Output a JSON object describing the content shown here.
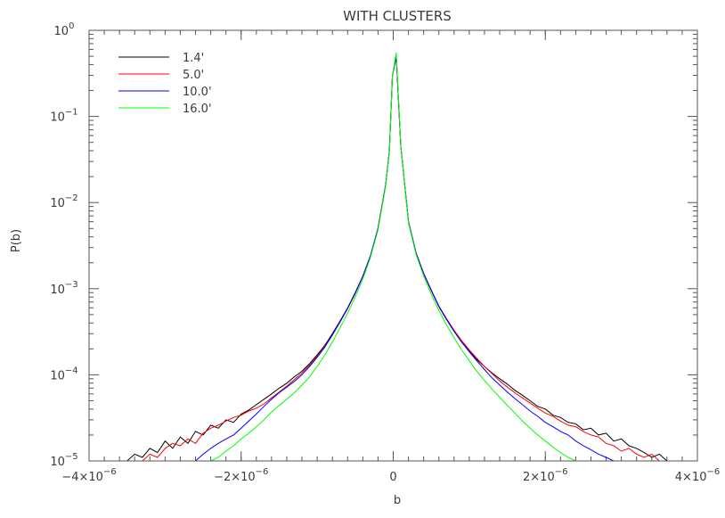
{
  "chart_data": {
    "type": "line",
    "title": "WITH CLUSTERS",
    "xlabel": "b",
    "ylabel": "P(b)",
    "xlim": [
      -4e-06,
      4e-06
    ],
    "ylim": [
      1e-05,
      1
    ],
    "yscale": "log",
    "grid": false,
    "legend_position": "top-left",
    "x_ticks": [
      {
        "value": -4e-06,
        "mant": "−4×10",
        "exp": "−6"
      },
      {
        "value": -2e-06,
        "mant": "−2×10",
        "exp": "−6"
      },
      {
        "value": 0,
        "mant": "0",
        "exp": ""
      },
      {
        "value": 2e-06,
        "mant": "2×10",
        "exp": "−6"
      },
      {
        "value": 4e-06,
        "mant": "4×10",
        "exp": "−6"
      }
    ],
    "y_ticks": [
      {
        "value": 1,
        "mant": "10",
        "exp": "0"
      },
      {
        "value": 0.1,
        "mant": "10",
        "exp": "−1"
      },
      {
        "value": 0.01,
        "mant": "10",
        "exp": "−2"
      },
      {
        "value": 0.001,
        "mant": "10",
        "exp": "−3"
      },
      {
        "value": 0.0001,
        "mant": "10",
        "exp": "−4"
      },
      {
        "value": 1e-05,
        "mant": "10",
        "exp": "−5"
      }
    ],
    "series": [
      {
        "name": "1.4'",
        "color": "#000000",
        "points": [
          [
            -3.5e-06,
            1e-05
          ],
          [
            -3.4e-06,
            1.2e-05
          ],
          [
            -3.3e-06,
            1.1e-05
          ],
          [
            -3.2e-06,
            1.4e-05
          ],
          [
            -3.1e-06,
            1.25e-05
          ],
          [
            -3e-06,
            1.7e-05
          ],
          [
            -2.9e-06,
            1.4e-05
          ],
          [
            -2.8e-06,
            1.9e-05
          ],
          [
            -2.7e-06,
            1.6e-05
          ],
          [
            -2.6e-06,
            2.2e-05
          ],
          [
            -2.5e-06,
            2e-05
          ],
          [
            -2.4e-06,
            2.6e-05
          ],
          [
            -2.3e-06,
            2.4e-05
          ],
          [
            -2.2e-06,
            3e-05
          ],
          [
            -2.1e-06,
            2.8e-05
          ],
          [
            -2e-06,
            3.5e-05
          ],
          [
            -1.9e-06,
            3.9e-05
          ],
          [
            -1.8e-06,
            4.5e-05
          ],
          [
            -1.7e-06,
            5.2e-05
          ],
          [
            -1.6e-06,
            6e-05
          ],
          [
            -1.5e-06,
            7e-05
          ],
          [
            -1.4e-06,
            8e-05
          ],
          [
            -1.3e-06,
            9.5e-05
          ],
          [
            -1.2e-06,
            0.00011
          ],
          [
            -1.1e-06,
            0.000135
          ],
          [
            -1e-06,
            0.00017
          ],
          [
            -9e-07,
            0.00022
          ],
          [
            -8e-07,
            0.0003
          ],
          [
            -7e-07,
            0.00042
          ],
          [
            -6e-07,
            0.0006
          ],
          [
            -5e-07,
            0.0009
          ],
          [
            -4e-07,
            0.0014
          ],
          [
            -3e-07,
            0.0024
          ],
          [
            -2e-07,
            0.005
          ],
          [
            -1e-07,
            0.016
          ],
          [
            -5e-08,
            0.04
          ],
          [
            -1e-08,
            0.3
          ],
          [
            4e-08,
            0.5
          ],
          [
            1e-07,
            0.045
          ],
          [
            2e-07,
            0.006
          ],
          [
            3e-07,
            0.0026
          ],
          [
            4e-07,
            0.0015
          ],
          [
            5e-07,
            0.00095
          ],
          [
            6e-07,
            0.00062
          ],
          [
            7e-07,
            0.00044
          ],
          [
            8e-07,
            0.00032
          ],
          [
            9e-07,
            0.00024
          ],
          [
            1e-06,
            0.00019
          ],
          [
            1.1e-06,
            0.00015
          ],
          [
            1.2e-06,
            0.000125
          ],
          [
            1.3e-06,
            0.000105
          ],
          [
            1.4e-06,
            9e-05
          ],
          [
            1.5e-06,
            7.8e-05
          ],
          [
            1.6e-06,
            6.6e-05
          ],
          [
            1.7e-06,
            5.8e-05
          ],
          [
            1.8e-06,
            5e-05
          ],
          [
            1.9e-06,
            4.3e-05
          ],
          [
            2e-06,
            4e-05
          ],
          [
            2.1e-06,
            3.4e-05
          ],
          [
            2.2e-06,
            3.2e-05
          ],
          [
            2.3e-06,
            2.8e-05
          ],
          [
            2.4e-06,
            2.7e-05
          ],
          [
            2.5e-06,
            2.3e-05
          ],
          [
            2.6e-06,
            2.4e-05
          ],
          [
            2.7e-06,
            2e-05
          ],
          [
            2.8e-06,
            2.1e-05
          ],
          [
            2.9e-06,
            1.7e-05
          ],
          [
            3e-06,
            1.8e-05
          ],
          [
            3.1e-06,
            1.5e-05
          ],
          [
            3.2e-06,
            1.4e-05
          ],
          [
            3.3e-06,
            1.25e-05
          ],
          [
            3.4e-06,
            1.1e-05
          ],
          [
            3.5e-06,
            1.2e-05
          ],
          [
            3.6e-06,
            1e-05
          ]
        ]
      },
      {
        "name": "5.0'",
        "color": "#ff0000",
        "points": [
          [
            -3.3e-06,
            1e-05
          ],
          [
            -3.2e-06,
            1.2e-05
          ],
          [
            -3.1e-06,
            1.1e-05
          ],
          [
            -3e-06,
            1.4e-05
          ],
          [
            -2.9e-06,
            1.6e-05
          ],
          [
            -2.8e-06,
            1.5e-05
          ],
          [
            -2.7e-06,
            1.8e-05
          ],
          [
            -2.6e-06,
            1.6e-05
          ],
          [
            -2.5e-06,
            2.1e-05
          ],
          [
            -2.4e-06,
            2.4e-05
          ],
          [
            -2.3e-06,
            2.6e-05
          ],
          [
            -2.2e-06,
            2.9e-05
          ],
          [
            -2.1e-06,
            3.2e-05
          ],
          [
            -2e-06,
            3.4e-05
          ],
          [
            -1.9e-06,
            3.8e-05
          ],
          [
            -1.8e-06,
            4.1e-05
          ],
          [
            -1.7e-06,
            4.6e-05
          ],
          [
            -1.6e-06,
            5.4e-05
          ],
          [
            -1.5e-06,
            6.3e-05
          ],
          [
            -1.4e-06,
            7.4e-05
          ],
          [
            -1.3e-06,
            8.8e-05
          ],
          [
            -1.2e-06,
            0.000105
          ],
          [
            -1.1e-06,
            0.00013
          ],
          [
            -1e-06,
            0.000165
          ],
          [
            -9e-07,
            0.000215
          ],
          [
            -8e-07,
            0.00029
          ],
          [
            -7e-07,
            0.00041
          ],
          [
            -6e-07,
            0.00059
          ],
          [
            -5e-07,
            0.00088
          ],
          [
            -4e-07,
            0.0014
          ],
          [
            -3e-07,
            0.0024
          ],
          [
            -2e-07,
            0.005
          ],
          [
            -1e-07,
            0.016
          ],
          [
            -5e-08,
            0.04
          ],
          [
            -1e-08,
            0.3
          ],
          [
            4e-08,
            0.5
          ],
          [
            1e-07,
            0.045
          ],
          [
            2e-07,
            0.006
          ],
          [
            3e-07,
            0.0026
          ],
          [
            4e-07,
            0.0015
          ],
          [
            5e-07,
            0.00096
          ],
          [
            6e-07,
            0.00063
          ],
          [
            7e-07,
            0.00045
          ],
          [
            8e-07,
            0.00033
          ],
          [
            9e-07,
            0.00025
          ],
          [
            1e-06,
            0.000195
          ],
          [
            1.1e-06,
            0.000155
          ],
          [
            1.2e-06,
            0.000125
          ],
          [
            1.3e-06,
            0.000103
          ],
          [
            1.4e-06,
            8.5e-05
          ],
          [
            1.5e-06,
            7.2e-05
          ],
          [
            1.6e-06,
            6.2e-05
          ],
          [
            1.7e-06,
            5.4e-05
          ],
          [
            1.8e-06,
            4.7e-05
          ],
          [
            1.9e-06,
            4.1e-05
          ],
          [
            2e-06,
            3.6e-05
          ],
          [
            2.1e-06,
            3.3e-05
          ],
          [
            2.2e-06,
            2.9e-05
          ],
          [
            2.3e-06,
            2.6e-05
          ],
          [
            2.4e-06,
            2.5e-05
          ],
          [
            2.5e-06,
            2.2e-05
          ],
          [
            2.6e-06,
            2e-05
          ],
          [
            2.7e-06,
            1.9e-05
          ],
          [
            2.8e-06,
            1.6e-05
          ],
          [
            2.9e-06,
            1.5e-05
          ],
          [
            3e-06,
            1.3e-05
          ],
          [
            3.1e-06,
            1.4e-05
          ],
          [
            3.2e-06,
            1.2e-05
          ],
          [
            3.3e-06,
            1.1e-05
          ],
          [
            3.4e-06,
            1.2e-05
          ],
          [
            3.5e-06,
            1e-05
          ]
        ]
      },
      {
        "name": "10.0'",
        "color": "#0000ff",
        "points": [
          [
            -2.6e-06,
            1e-05
          ],
          [
            -2.5e-06,
            1.2e-05
          ],
          [
            -2.4e-06,
            1.4e-05
          ],
          [
            -2.3e-06,
            1.6e-05
          ],
          [
            -2.2e-06,
            1.8e-05
          ],
          [
            -2.1e-06,
            2e-05
          ],
          [
            -2e-06,
            2.4e-05
          ],
          [
            -1.9e-06,
            2.9e-05
          ],
          [
            -1.8e-06,
            3.5e-05
          ],
          [
            -1.7e-06,
            4.3e-05
          ],
          [
            -1.6e-06,
            5.2e-05
          ],
          [
            -1.5e-06,
            6.2e-05
          ],
          [
            -1.4e-06,
            7.2e-05
          ],
          [
            -1.3e-06,
            8.4e-05
          ],
          [
            -1.2e-06,
            0.0001
          ],
          [
            -1.1e-06,
            0.000125
          ],
          [
            -1e-06,
            0.00016
          ],
          [
            -9e-07,
            0.00021
          ],
          [
            -8e-07,
            0.00029
          ],
          [
            -7e-07,
            0.00041
          ],
          [
            -6e-07,
            0.00059
          ],
          [
            -5e-07,
            0.00088
          ],
          [
            -4e-07,
            0.0014
          ],
          [
            -3e-07,
            0.0024
          ],
          [
            -2e-07,
            0.005
          ],
          [
            -1e-07,
            0.016
          ],
          [
            -5e-08,
            0.04
          ],
          [
            -1e-08,
            0.3
          ],
          [
            4e-08,
            0.5
          ],
          [
            1e-07,
            0.045
          ],
          [
            2e-07,
            0.006
          ],
          [
            3e-07,
            0.0026
          ],
          [
            4e-07,
            0.0015
          ],
          [
            5e-07,
            0.00096
          ],
          [
            6e-07,
            0.00063
          ],
          [
            7e-07,
            0.00044
          ],
          [
            8e-07,
            0.00032
          ],
          [
            9e-07,
            0.00024
          ],
          [
            1e-06,
            0.000185
          ],
          [
            1.1e-06,
            0.000145
          ],
          [
            1.2e-06,
            0.000115
          ],
          [
            1.3e-06,
            9.2e-05
          ],
          [
            1.4e-06,
            7.6e-05
          ],
          [
            1.5e-06,
            6.3e-05
          ],
          [
            1.6e-06,
            5.3e-05
          ],
          [
            1.7e-06,
            4.5e-05
          ],
          [
            1.8e-06,
            3.8e-05
          ],
          [
            1.9e-06,
            3.3e-05
          ],
          [
            2e-06,
            2.8e-05
          ],
          [
            2.1e-06,
            2.5e-05
          ],
          [
            2.2e-06,
            2.2e-05
          ],
          [
            2.3e-06,
            2e-05
          ],
          [
            2.4e-06,
            1.7e-05
          ],
          [
            2.5e-06,
            1.5e-05
          ],
          [
            2.6e-06,
            1.35e-05
          ],
          [
            2.7e-06,
            1.2e-05
          ],
          [
            2.8e-06,
            1.1e-05
          ],
          [
            2.9e-06,
            1e-05
          ]
        ]
      },
      {
        "name": "16.0'",
        "color": "#00ff00",
        "points": [
          [
            -2.4e-06,
            1e-05
          ],
          [
            -2.3e-06,
            1.1e-05
          ],
          [
            -2.2e-06,
            1.3e-05
          ],
          [
            -2.1e-06,
            1.5e-05
          ],
          [
            -2e-06,
            1.8e-05
          ],
          [
            -1.9e-06,
            2.1e-05
          ],
          [
            -1.8e-06,
            2.5e-05
          ],
          [
            -1.7e-06,
            3e-05
          ],
          [
            -1.6e-06,
            3.7e-05
          ],
          [
            -1.5e-06,
            4.4e-05
          ],
          [
            -1.4e-06,
            5.2e-05
          ],
          [
            -1.3e-06,
            6.2e-05
          ],
          [
            -1.2e-06,
            7.6e-05
          ],
          [
            -1.1e-06,
            9.5e-05
          ],
          [
            -1e-06,
            0.000125
          ],
          [
            -9e-07,
            0.00017
          ],
          [
            -8e-07,
            0.00024
          ],
          [
            -7e-07,
            0.00035
          ],
          [
            -6e-07,
            0.00052
          ],
          [
            -5e-07,
            0.0008
          ],
          [
            -4e-07,
            0.0013
          ],
          [
            -3e-07,
            0.0023
          ],
          [
            -2e-07,
            0.0048
          ],
          [
            -1e-07,
            0.0155
          ],
          [
            -5e-08,
            0.039
          ],
          [
            -1e-08,
            0.3
          ],
          [
            4e-08,
            0.55
          ],
          [
            1e-07,
            0.045
          ],
          [
            2e-07,
            0.0058
          ],
          [
            3e-07,
            0.0025
          ],
          [
            4e-07,
            0.0014
          ],
          [
            5e-07,
            0.00086
          ],
          [
            6e-07,
            0.00056
          ],
          [
            7e-07,
            0.00038
          ],
          [
            8e-07,
            0.00027
          ],
          [
            9e-07,
            0.000195
          ],
          [
            1e-06,
            0.000145
          ],
          [
            1.1e-06,
            0.00011
          ],
          [
            1.2e-06,
            8.6e-05
          ],
          [
            1.3e-06,
            6.8e-05
          ],
          [
            1.4e-06,
            5.5e-05
          ],
          [
            1.5e-06,
            4.4e-05
          ],
          [
            1.6e-06,
            3.6e-05
          ],
          [
            1.7e-06,
            2.9e-05
          ],
          [
            1.8e-06,
            2.4e-05
          ],
          [
            1.9e-06,
            2e-05
          ],
          [
            2e-06,
            1.7e-05
          ],
          [
            2.1e-06,
            1.45e-05
          ],
          [
            2.2e-06,
            1.25e-05
          ],
          [
            2.3e-06,
            1.1e-05
          ],
          [
            2.4e-06,
            1e-05
          ]
        ]
      }
    ]
  }
}
